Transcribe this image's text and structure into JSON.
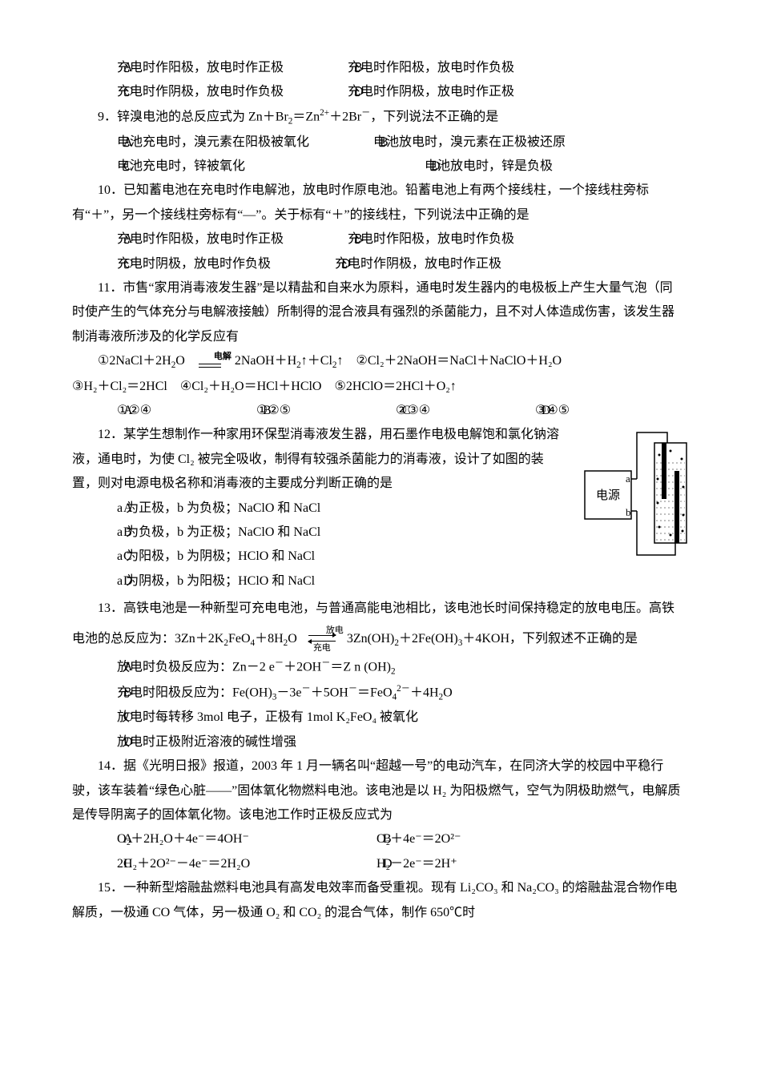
{
  "q8": {
    "A": "充电时作阳极，放电时作正极",
    "B": "充电时作阳极，放电时作负极",
    "C": "充电时作阴极，放电时作负极",
    "D": "充电时作阴极，放电时作正极"
  },
  "q9": {
    "num": "9．",
    "stem_prefix": "锌溴电池的总反应式为 Zn＋Br",
    "stem_mid": "＝Zn",
    "stem_suffix": "，下列说法不正确的是",
    "A": "电池充电时，溴元素在阳极被氧化",
    "B": "电池放电时，溴元素在正极被还原",
    "C": "电池充电时，锌被氧化",
    "D": "电池放电时，锌是负极"
  },
  "q10": {
    "num": "10．",
    "stem1": "已知蓄电池在充电时作电解池，放电时作原电池。铅蓄电池上有两个接线柱，一个接线柱旁标有“＋”，另一个接线柱旁标有“—”。关于标有“＋”的接线柱，下列说法中正确的是",
    "A": "充电时作阳极，放电时作正极",
    "B": "充电时作阳极，放电时作负极",
    "C": "充电时阴极，放电时作负极",
    "D": "充电时作阴极，放电时作正极"
  },
  "q11": {
    "num": "11．",
    "stem": "市售“家用消毒液发生器”是以精盐和自来水为原料，通电时发生器内的电极板上产生大量气泡（同时使产生的气体充分与电解液接触）所制得的混合液具有强烈的杀菌能力，且不对人体造成伤害，该发生器制消毒液所涉及的化学反应有",
    "eq1_pre": "①2NaCl＋2H",
    "eq1_mid": "O",
    "eq1_elec": "电解",
    "eq1_after": "2NaOH＋H",
    "eq1_end": "↑＋Cl",
    "eq1_last": "↑",
    "eq2": "②Cl₂＋2NaOH＝NaCl＋NaClO＋H₂O",
    "eq3": "③H₂＋Cl₂＝2HCl",
    "eq4": "④Cl₂＋H₂O＝HCl＋HClO",
    "eq5": "⑤2HClO＝2HCl＋O₂↑",
    "A": "①②④",
    "B": "①②⑤",
    "C": "②③④",
    "D": "③④⑤"
  },
  "q12": {
    "num": "12．",
    "stem": "某学生想制作一种家用环保型消毒液发生器，用石墨作电极电解饱和氯化钠溶液，通电时，为使 Cl₂ 被完全吸收，制得有较强杀菌能力的消毒液，设计了如图的装置，则对电源电极名称和消毒液的主要成分判断正确的是",
    "A": "a 为正极，b 为负极；NaClO 和 NaCl",
    "B": "a 为负极，b 为正极；NaClO 和 NaCl",
    "C": "a 为阳极，b 为阴极；HClO 和 NaCl",
    "D": "a 为阴极，b 为阳极；HClO 和 NaCl",
    "diagram": {
      "width": 140,
      "height": 180,
      "power_label": "电源",
      "terminal_a": "a",
      "terminal_b": "b",
      "box_stroke": "#000000",
      "wire_stroke": "#000000",
      "cell_fill": "#ffffff",
      "dot_fill": "#000000"
    }
  },
  "q13": {
    "num": "13．",
    "stem_pre": "高铁电池是一种新型可充电电池，与普通高能电池相比，该电池长时间保持稳定的放电电压。高铁电池的总反应为：3Zn＋2K",
    "stem_mid1": "FeO",
    "stem_mid2": "＋8H",
    "stem_mid3": "O",
    "dc_top": "放电",
    "dc_bot": "充电",
    "stem_after": "3Zn(OH)",
    "stem_after2": "＋2Fe(OH)",
    "stem_last": "＋4KOH，下列叙述不正确的是",
    "A_pre": "放电时负极反应为：Zn－2 e",
    "A_mid": "＋2OH",
    "A_end": "＝Z n (OH)",
    "B_pre": "充电时阳极反应为：Fe(OH)",
    "B_mid1": "－3e",
    "B_mid2": "＋5OH",
    "B_mid3": "＝FeO",
    "B_end": "＋4H",
    "C": "放电时每转移 3mol 电子，正极有 1mol K₂FeO₄ 被氧化",
    "D": "放电时正极附近溶液的碱性增强"
  },
  "q14": {
    "num": "14．",
    "stem": "据《光明日报》报道，2003 年 1 月一辆名叫“超越一号”的电动汽车，在同济大学的校园中平稳行驶，该车装着“绿色心脏——”固体氧化物燃料电池。该电池是以 H₂ 为阳极燃气，空气为阴极助燃气，电解质是传导阴离子的固体氧化物。该电池工作时正极反应式为",
    "A": "O₂＋2H₂O＋4e⁻＝4OH⁻",
    "B": "O₂＋4e⁻＝2O²⁻",
    "C": "2H₂＋2O²⁻－4e⁻＝2H₂O",
    "D": "H₂－2e⁻＝2H⁺"
  },
  "q15": {
    "num": "15．",
    "stem": "一种新型熔融盐燃料电池具有高发电效率而备受重视。现有 Li₂CO₃ 和 Na₂CO₃ 的熔融盐混合物作电解质，一极通 CO 气体，另一极通 O₂ 和 CO₂ 的混合气体，制作 650℃时"
  }
}
